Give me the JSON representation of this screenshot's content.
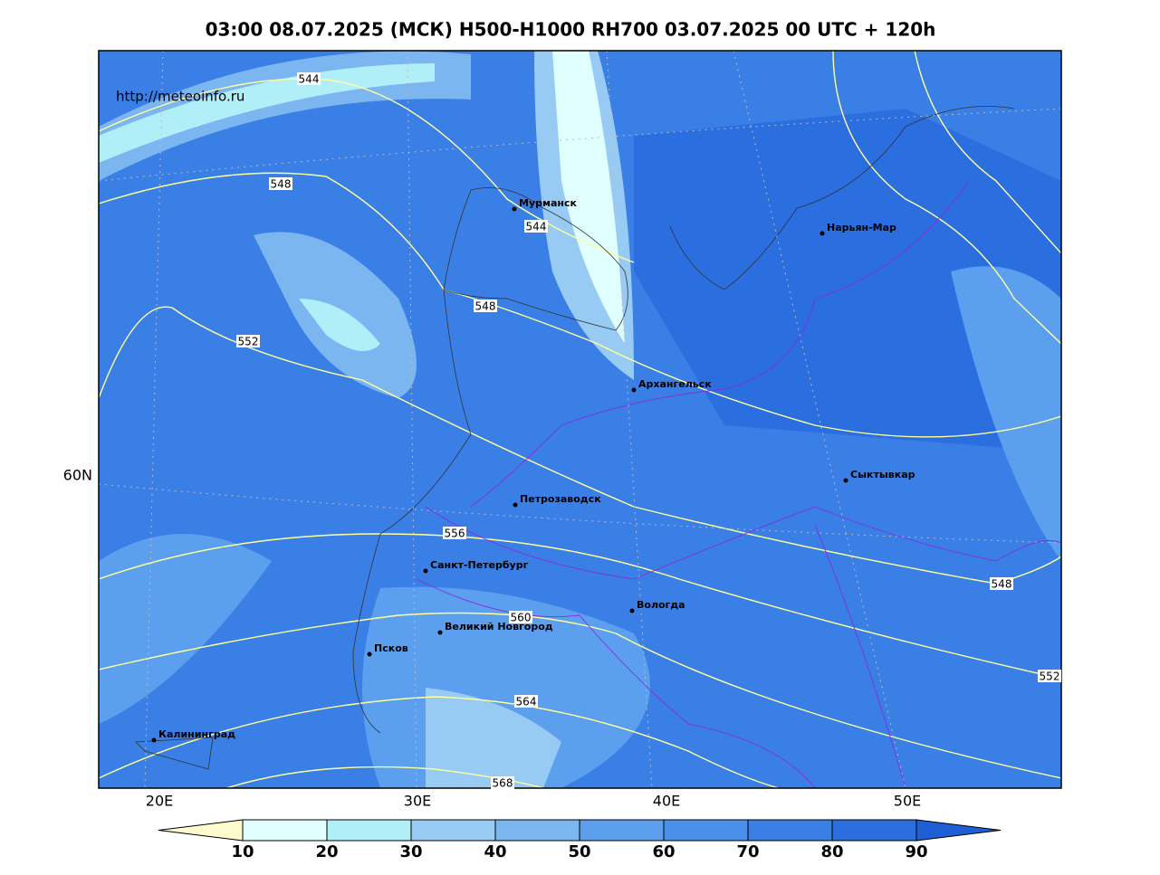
{
  "title": "03:00 08.07.2025 (МСК) H500-H1000 RH700 03.07.2025 00 UTC + 120h",
  "url": "http://meteoinfo.ru",
  "cities": [
    "Мурманск",
    "Нарьян-Мар",
    "Архангельск",
    "Сыктывкар",
    "Петрозаводск",
    "Санкт-Петербург",
    "Вологда",
    "Великий Новгород",
    "Псков",
    "Калининград"
  ],
  "contour_labels": [
    544,
    544,
    548,
    548,
    552,
    556,
    560,
    564,
    568,
    548,
    552
  ],
  "lat_labels": [
    "60N"
  ],
  "lon_labels": [
    "20E",
    "30E",
    "40E",
    "50E"
  ],
  "colorbar": {
    "ticks": [
      10,
      20,
      30,
      40,
      50,
      60,
      70,
      80,
      90
    ],
    "colors": [
      "#fffacd",
      "#e0ffff",
      "#b0eef8",
      "#98cbf3",
      "#7cb6f1",
      "#5b9fee",
      "#4a8fea",
      "#3a7fe6",
      "#2a6ee0",
      "#1e5fd6"
    ]
  }
}
